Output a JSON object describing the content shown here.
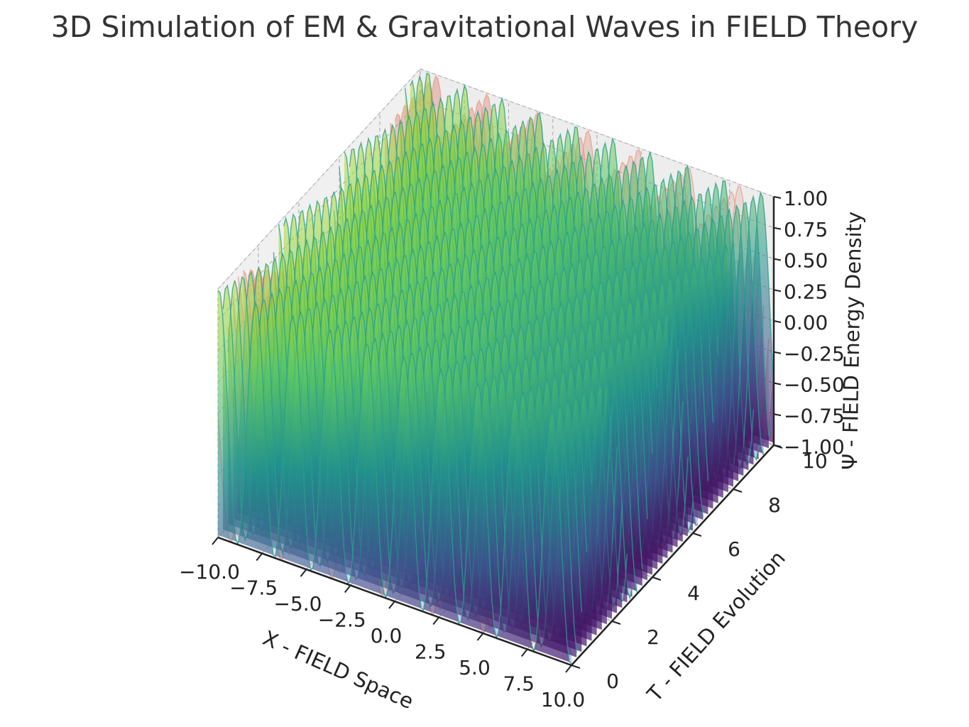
{
  "chart_data": {
    "type": "surface3d",
    "title": "3D Simulation of EM & Gravitational Waves in FIELD Theory",
    "xlabel": "X - FIELD Space",
    "ylabel": "T - FIELD Evolution",
    "zlabel": "Ψ - FIELD Energy Density",
    "x_ticks": [
      "−10.0",
      "−7.5",
      "−5.0",
      "−2.5",
      "0.0",
      "2.5",
      "5.0",
      "7.5",
      "10.0"
    ],
    "y_ticks": [
      "0",
      "2",
      "4",
      "6",
      "8",
      "10"
    ],
    "z_ticks": [
      "−1.00",
      "−0.75",
      "−0.50",
      "−0.25",
      "0.00",
      "0.25",
      "0.50",
      "0.75",
      "1.00"
    ],
    "xlim": [
      -10,
      10
    ],
    "ylim": [
      0,
      10
    ],
    "zlim": [
      -1,
      1
    ],
    "grid": true,
    "series": [
      {
        "colormap": "viridis",
        "x_range": [
          -10,
          10
        ],
        "t_range": [
          0,
          10
        ],
        "z_range": [
          -1,
          1
        ]
      },
      {
        "colormap": "coolwarm",
        "x_range": [
          -10,
          10
        ],
        "t_range": [
          0,
          10
        ],
        "z_range": [
          -1,
          1
        ]
      }
    ],
    "colors": {
      "pane": "#f2f2f2",
      "grid": "#b0b0b0",
      "axis": "#222222",
      "title": "#333333"
    }
  }
}
